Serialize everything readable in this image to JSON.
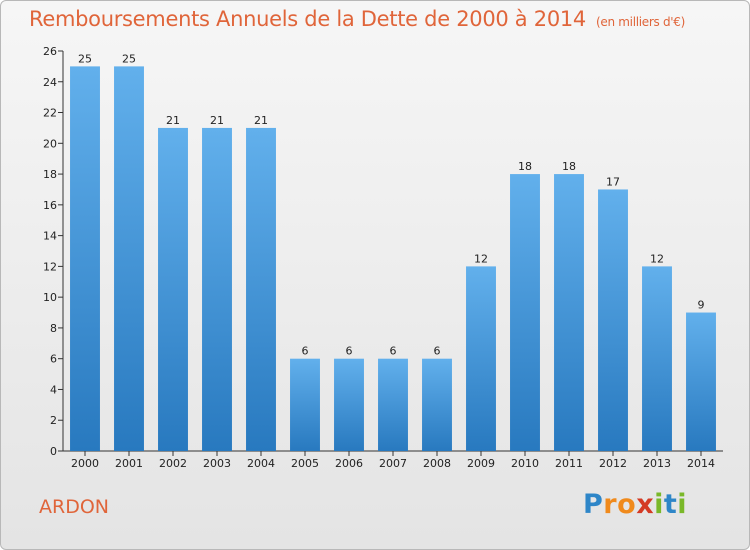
{
  "header": {
    "title": "Remboursements Annuels de la Dette de 2000 à 2014",
    "unit": "(en milliers d'€)"
  },
  "commune": "ARDON",
  "logo": {
    "letters": [
      "P",
      "r",
      "o",
      "x",
      "i",
      "t",
      "i"
    ],
    "colors": [
      "#2e86c8",
      "#f08a1c",
      "#f08a1c",
      "#d43a24",
      "#7ab829",
      "#2e86c8",
      "#7ab829"
    ]
  },
  "colors": {
    "title": "#e0653a",
    "bar_top": "#62b0ec",
    "bar_bottom": "#2879bf"
  },
  "chart_data": {
    "type": "bar",
    "title": "Remboursements Annuels de la Dette de 2000 à 2014",
    "xlabel": "",
    "ylabel": "",
    "categories": [
      "2000",
      "2001",
      "2002",
      "2003",
      "2004",
      "2005",
      "2006",
      "2007",
      "2008",
      "2009",
      "2010",
      "2011",
      "2012",
      "2013",
      "2014"
    ],
    "values": [
      25,
      25,
      21,
      21,
      21,
      6,
      6,
      6,
      6,
      12,
      18,
      18,
      17,
      12,
      9
    ],
    "ylim": [
      0,
      26
    ],
    "yticks": [
      0,
      2,
      4,
      6,
      8,
      10,
      12,
      14,
      16,
      18,
      20,
      22,
      24,
      26
    ],
    "grid": false
  }
}
